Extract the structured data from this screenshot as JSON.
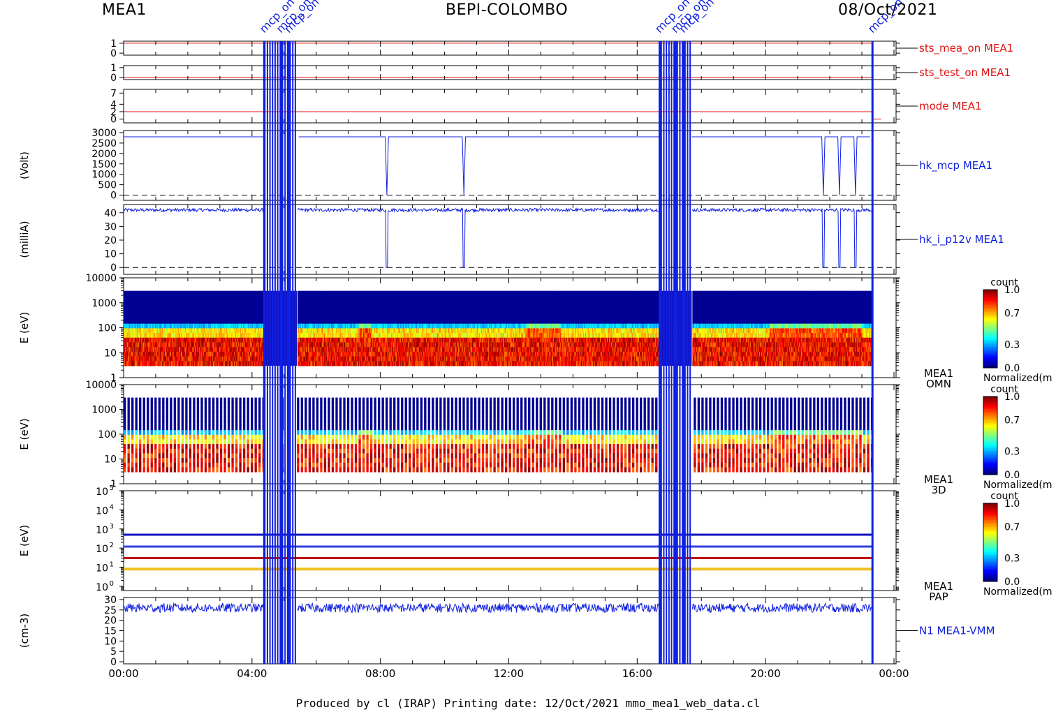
{
  "header": {
    "left": "MEA1",
    "center": "BEPI-COLOMBO",
    "right": "08/Oct/2021"
  },
  "footer": "Produced by cl (IRAP)    Printing date: 12/Oct/2021    mmo_mea1_web_data.cl",
  "colors": {
    "red": "#e01010",
    "blue": "#1020e0",
    "dark_red": "#8b0000"
  },
  "chart_data": {
    "type": "multi-panel",
    "x_axis": {
      "range_hours": [
        0,
        24
      ],
      "tick_labels": [
        "00:00",
        "04:00",
        "08:00",
        "12:00",
        "16:00",
        "20:00",
        "00:00"
      ],
      "tick_hours": [
        0,
        4,
        8,
        12,
        16,
        20,
        24
      ]
    },
    "event_markers": {
      "label": "mcp_on",
      "hours": [
        4.38,
        4.9,
        5.15,
        16.7,
        17.2,
        17.45,
        23.33
      ],
      "bands": [
        [
          4.4,
          4.9
        ],
        [
          4.95,
          5.4
        ],
        [
          16.75,
          17.2
        ],
        [
          17.25,
          17.7
        ]
      ]
    },
    "panels": [
      {
        "id": "sts_mea_on",
        "label": "sts_mea_on MEA1",
        "ylabel": "",
        "yticks": [
          "1",
          "0"
        ],
        "yvals": [
          1,
          0
        ],
        "ylim": [
          -0.2,
          1.2
        ],
        "color": "#e01010",
        "level": 1
      },
      {
        "id": "sts_test_on",
        "label": "sts_test_on MEA1",
        "ylabel": "",
        "yticks": [
          "1",
          "0"
        ],
        "yvals": [
          1,
          0
        ],
        "ylim": [
          -0.2,
          1.2
        ],
        "color": "#e01010",
        "level": 0
      },
      {
        "id": "mode",
        "label": "mode MEA1",
        "ylabel": "",
        "yticks": [
          "7",
          "4",
          "2",
          "0"
        ],
        "yvals": [
          7,
          4,
          2,
          0
        ],
        "ylim": [
          -1,
          8
        ],
        "color": "#e01010",
        "level": 2
      },
      {
        "id": "hk_mcp",
        "label": "hk_mcp MEA1",
        "ylabel": "(Volt)",
        "yticks": [
          "3000",
          "2500",
          "2000",
          "1500",
          "1000",
          "500",
          "0"
        ],
        "yvals": [
          3000,
          2500,
          2000,
          1500,
          1000,
          500,
          0
        ],
        "ylim": [
          -250,
          3100
        ],
        "color": "#1020e0",
        "level": 2800
      },
      {
        "id": "hk_i_p12v",
        "label": "hk_i_p12v MEA1",
        "ylabel": "(milliA)",
        "yticks": [
          "40",
          "30",
          "20",
          "10",
          "0"
        ],
        "yvals": [
          40,
          30,
          20,
          10,
          0
        ],
        "ylim": [
          -5,
          46
        ],
        "color": "#1020e0",
        "level": 42
      },
      {
        "id": "omn",
        "label": "MEA1",
        "label2": "OMN",
        "ylabel": "E (eV)",
        "yticks": [
          "10000",
          "1000",
          "100",
          "10",
          "1"
        ],
        "yvals": [
          10000,
          1000,
          100,
          10,
          1
        ],
        "ylim": [
          1,
          10000
        ],
        "log": true,
        "kind": "spectrogram"
      },
      {
        "id": "3d",
        "label": "MEA1",
        "label2": "3D",
        "ylabel": "E (eV)",
        "yticks": [
          "10000",
          "1000",
          "100",
          "10",
          "1"
        ],
        "yvals": [
          10000,
          1000,
          100,
          10,
          1
        ],
        "ylim": [
          1,
          10000
        ],
        "log": true,
        "kind": "spectrogram-striped"
      },
      {
        "id": "pap",
        "label": "MEA1",
        "label2": "PAP",
        "ylabel": "E (eV)",
        "yticks_exp": [
          "5",
          "4",
          "3",
          "2",
          "1",
          "0"
        ],
        "yvals": [
          100000,
          10000,
          1000,
          100,
          10,
          1
        ],
        "ylim": [
          0.6,
          100000
        ],
        "log": true,
        "kind": "energy-lines",
        "lines": [
          500,
          120,
          30,
          8
        ]
      },
      {
        "id": "n1",
        "label": "N1 MEA1-VMM",
        "ylabel": "(cm-3)",
        "yticks": [
          "30",
          "25",
          "20",
          "15",
          "10",
          "5",
          "0"
        ],
        "yvals": [
          30,
          25,
          20,
          15,
          10,
          5,
          0
        ],
        "ylim": [
          -1,
          31
        ],
        "color": "#1020e0",
        "level": 26
      }
    ],
    "colorbars": [
      {
        "title": "count",
        "ticks": [
          "1.0",
          "0.7",
          "0.3",
          "0.0"
        ],
        "tick_vals": [
          1.0,
          0.7,
          0.3,
          0.0
        ],
        "label": "Normalized(m"
      },
      {
        "title": "count",
        "ticks": [
          "1.0",
          "0.7",
          "0.3",
          "0.0"
        ],
        "tick_vals": [
          1.0,
          0.7,
          0.3,
          0.0
        ],
        "label": "Normalized(m"
      },
      {
        "title": "count",
        "ticks": [
          "1.0",
          "0.7",
          "0.3",
          "0.0"
        ],
        "tick_vals": [
          1.0,
          0.7,
          0.3,
          0.0
        ],
        "label": "Normalized(m"
      }
    ]
  }
}
